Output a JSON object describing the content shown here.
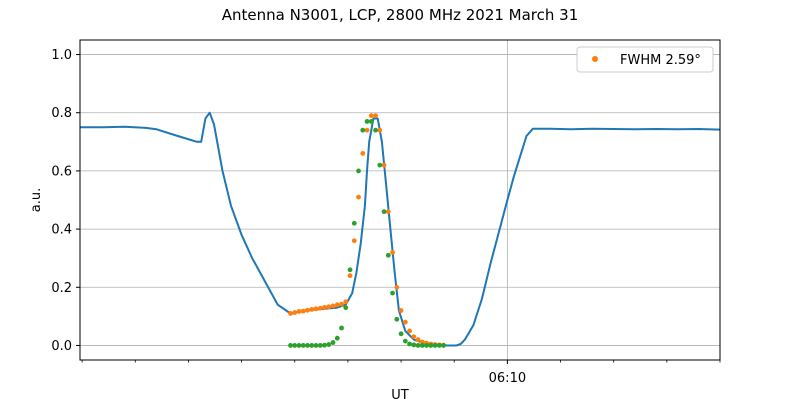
{
  "chart_data": {
    "type": "scatter",
    "title": "Antenna N3001, LCP, 2800 MHz 2021 March 31",
    "xlabel": "UT",
    "ylabel": "a.u.",
    "xlim": [
      -20.1,
      10.0
    ],
    "ylim": [
      -0.05,
      1.05
    ],
    "x_axis_note": "minutes relative to 06:10 UT",
    "yticks": [
      0.0,
      0.2,
      0.4,
      0.6,
      0.8,
      1.0
    ],
    "ytick_labels": [
      "0.0",
      "0.2",
      "0.4",
      "0.6",
      "0.8",
      "1.0"
    ],
    "xticks_major": [
      0
    ],
    "xtick_labels": [
      "06:10"
    ],
    "xticks_minor": [
      -20,
      -17.5,
      -15,
      -12.5,
      -10,
      -7.5,
      -5,
      -2.5,
      2.5,
      5,
      7.5,
      10
    ],
    "grid": true,
    "legend": {
      "placement": "top-right",
      "entries": [
        "FWHM 2.59$^\\circ$"
      ],
      "entries_display": [
        "FWHM 2.59°"
      ]
    },
    "colors": {
      "line": "#1f77b4",
      "orange": "#ff7f0e",
      "green": "#2ca02c",
      "grid": "#b0b0b0"
    },
    "series": [
      {
        "style": "line",
        "color": "#1f77b4",
        "x": [
          -20.1,
          -19.0,
          -18.0,
          -17.0,
          -16.5,
          -15.5,
          -14.6,
          -14.4,
          -14.2,
          -14.0,
          -13.8,
          -13.4,
          -13.0,
          -12.5,
          -12.0,
          -11.4,
          -10.8,
          -10.2,
          -9.8,
          -9.5,
          -8.8,
          -8.0,
          -7.6,
          -7.3,
          -7.1,
          -6.9,
          -6.7,
          -6.6,
          -6.5,
          -6.3,
          -6.1,
          -5.9,
          -5.7,
          -5.5,
          -5.3,
          -5.1,
          -4.8,
          -4.4,
          -4.0,
          -3.6,
          -3.2,
          -2.8,
          -2.4,
          -2.2,
          -2.0,
          -1.6,
          -1.2,
          -0.8,
          -0.4,
          0.0,
          0.3,
          0.6,
          0.9,
          1.2,
          2.0,
          3.0,
          4.0,
          5.0,
          6.0,
          7.0,
          8.0,
          9.0,
          10.0
        ],
        "y": [
          0.75,
          0.75,
          0.752,
          0.748,
          0.743,
          0.72,
          0.7,
          0.7,
          0.78,
          0.8,
          0.76,
          0.6,
          0.48,
          0.38,
          0.3,
          0.22,
          0.14,
          0.11,
          0.115,
          0.12,
          0.125,
          0.13,
          0.14,
          0.18,
          0.25,
          0.35,
          0.48,
          0.6,
          0.7,
          0.78,
          0.78,
          0.7,
          0.55,
          0.4,
          0.25,
          0.12,
          0.05,
          0.02,
          0.01,
          0.005,
          0.002,
          0.0,
          0.0,
          0.005,
          0.02,
          0.07,
          0.16,
          0.28,
          0.39,
          0.5,
          0.58,
          0.65,
          0.72,
          0.745,
          0.745,
          0.743,
          0.745,
          0.744,
          0.743,
          0.744,
          0.743,
          0.744,
          0.742
        ]
      },
      {
        "style": "points",
        "color": "#ff7f0e",
        "x": [
          -10.2,
          -10.0,
          -9.8,
          -9.6,
          -9.4,
          -9.2,
          -9.0,
          -8.8,
          -8.6,
          -8.4,
          -8.2,
          -8.0,
          -7.8,
          -7.6,
          -7.4,
          -7.2,
          -7.0,
          -6.8,
          -6.6,
          -6.4,
          -6.2,
          -6.0,
          -5.8,
          -5.6,
          -5.4,
          -5.2,
          -5.0,
          -4.8,
          -4.6,
          -4.4,
          -4.2,
          -4.0,
          -3.8,
          -3.6,
          -3.4,
          -3.2,
          -3.0
        ],
        "y": [
          0.11,
          0.113,
          0.117,
          0.118,
          0.121,
          0.124,
          0.126,
          0.128,
          0.131,
          0.133,
          0.136,
          0.14,
          0.142,
          0.15,
          0.24,
          0.36,
          0.51,
          0.66,
          0.74,
          0.79,
          0.79,
          0.74,
          0.62,
          0.46,
          0.32,
          0.2,
          0.12,
          0.08,
          0.05,
          0.03,
          0.02,
          0.012,
          0.008,
          0.005,
          0.003,
          0.002,
          0.001
        ]
      },
      {
        "style": "points",
        "color": "#2ca02c",
        "x": [
          -10.2,
          -10.0,
          -9.8,
          -9.6,
          -9.4,
          -9.2,
          -9.0,
          -8.8,
          -8.6,
          -8.4,
          -8.2,
          -8.0,
          -7.8,
          -7.6,
          -7.4,
          -7.2,
          -7.0,
          -6.8,
          -6.6,
          -6.4,
          -6.2,
          -6.0,
          -5.8,
          -5.6,
          -5.4,
          -5.2,
          -5.0,
          -4.8,
          -4.6,
          -4.4,
          -4.2,
          -4.0,
          -3.8,
          -3.6,
          -3.4,
          -3.2,
          -3.0
        ],
        "y": [
          0.0,
          0.0,
          0.0,
          0.0,
          0.0,
          0.0,
          0.0,
          0.0,
          0.001,
          0.003,
          0.01,
          0.025,
          0.06,
          0.13,
          0.26,
          0.42,
          0.6,
          0.74,
          0.77,
          0.77,
          0.74,
          0.62,
          0.46,
          0.31,
          0.18,
          0.09,
          0.04,
          0.015,
          0.005,
          0.002,
          0.0,
          0.0,
          0.0,
          0.0,
          0.0,
          0.0,
          0.0
        ]
      }
    ]
  }
}
